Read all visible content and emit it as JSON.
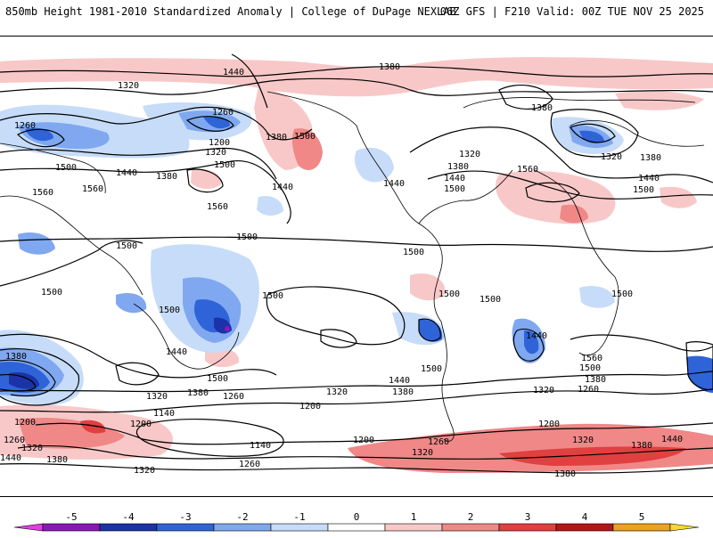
{
  "header": {
    "title": "850mb Height 1981-2010 Standardized Anomaly | College of DuPage NEXLAB",
    "run_info": "06Z GFS | F210 Valid: 00Z TUE NOV 25 2025"
  },
  "map": {
    "contour_labels": [
      "1440",
      "1380",
      "1320",
      "1260",
      "1200",
      "1500",
      "1560",
      "1140"
    ]
  },
  "colorbar": {
    "ticks": [
      "-5",
      "-4",
      "-3",
      "-2",
      "-1",
      "0",
      "1",
      "2",
      "3",
      "4",
      "5"
    ],
    "colors": [
      "#e040e0",
      "#8a18b8",
      "#1c32a8",
      "#2f64d8",
      "#80a8f0",
      "#c6dcf8",
      "#ffffff",
      "#f8c8c8",
      "#f08888",
      "#e04040",
      "#b01818",
      "#f0a020",
      "#f8d830"
    ]
  }
}
